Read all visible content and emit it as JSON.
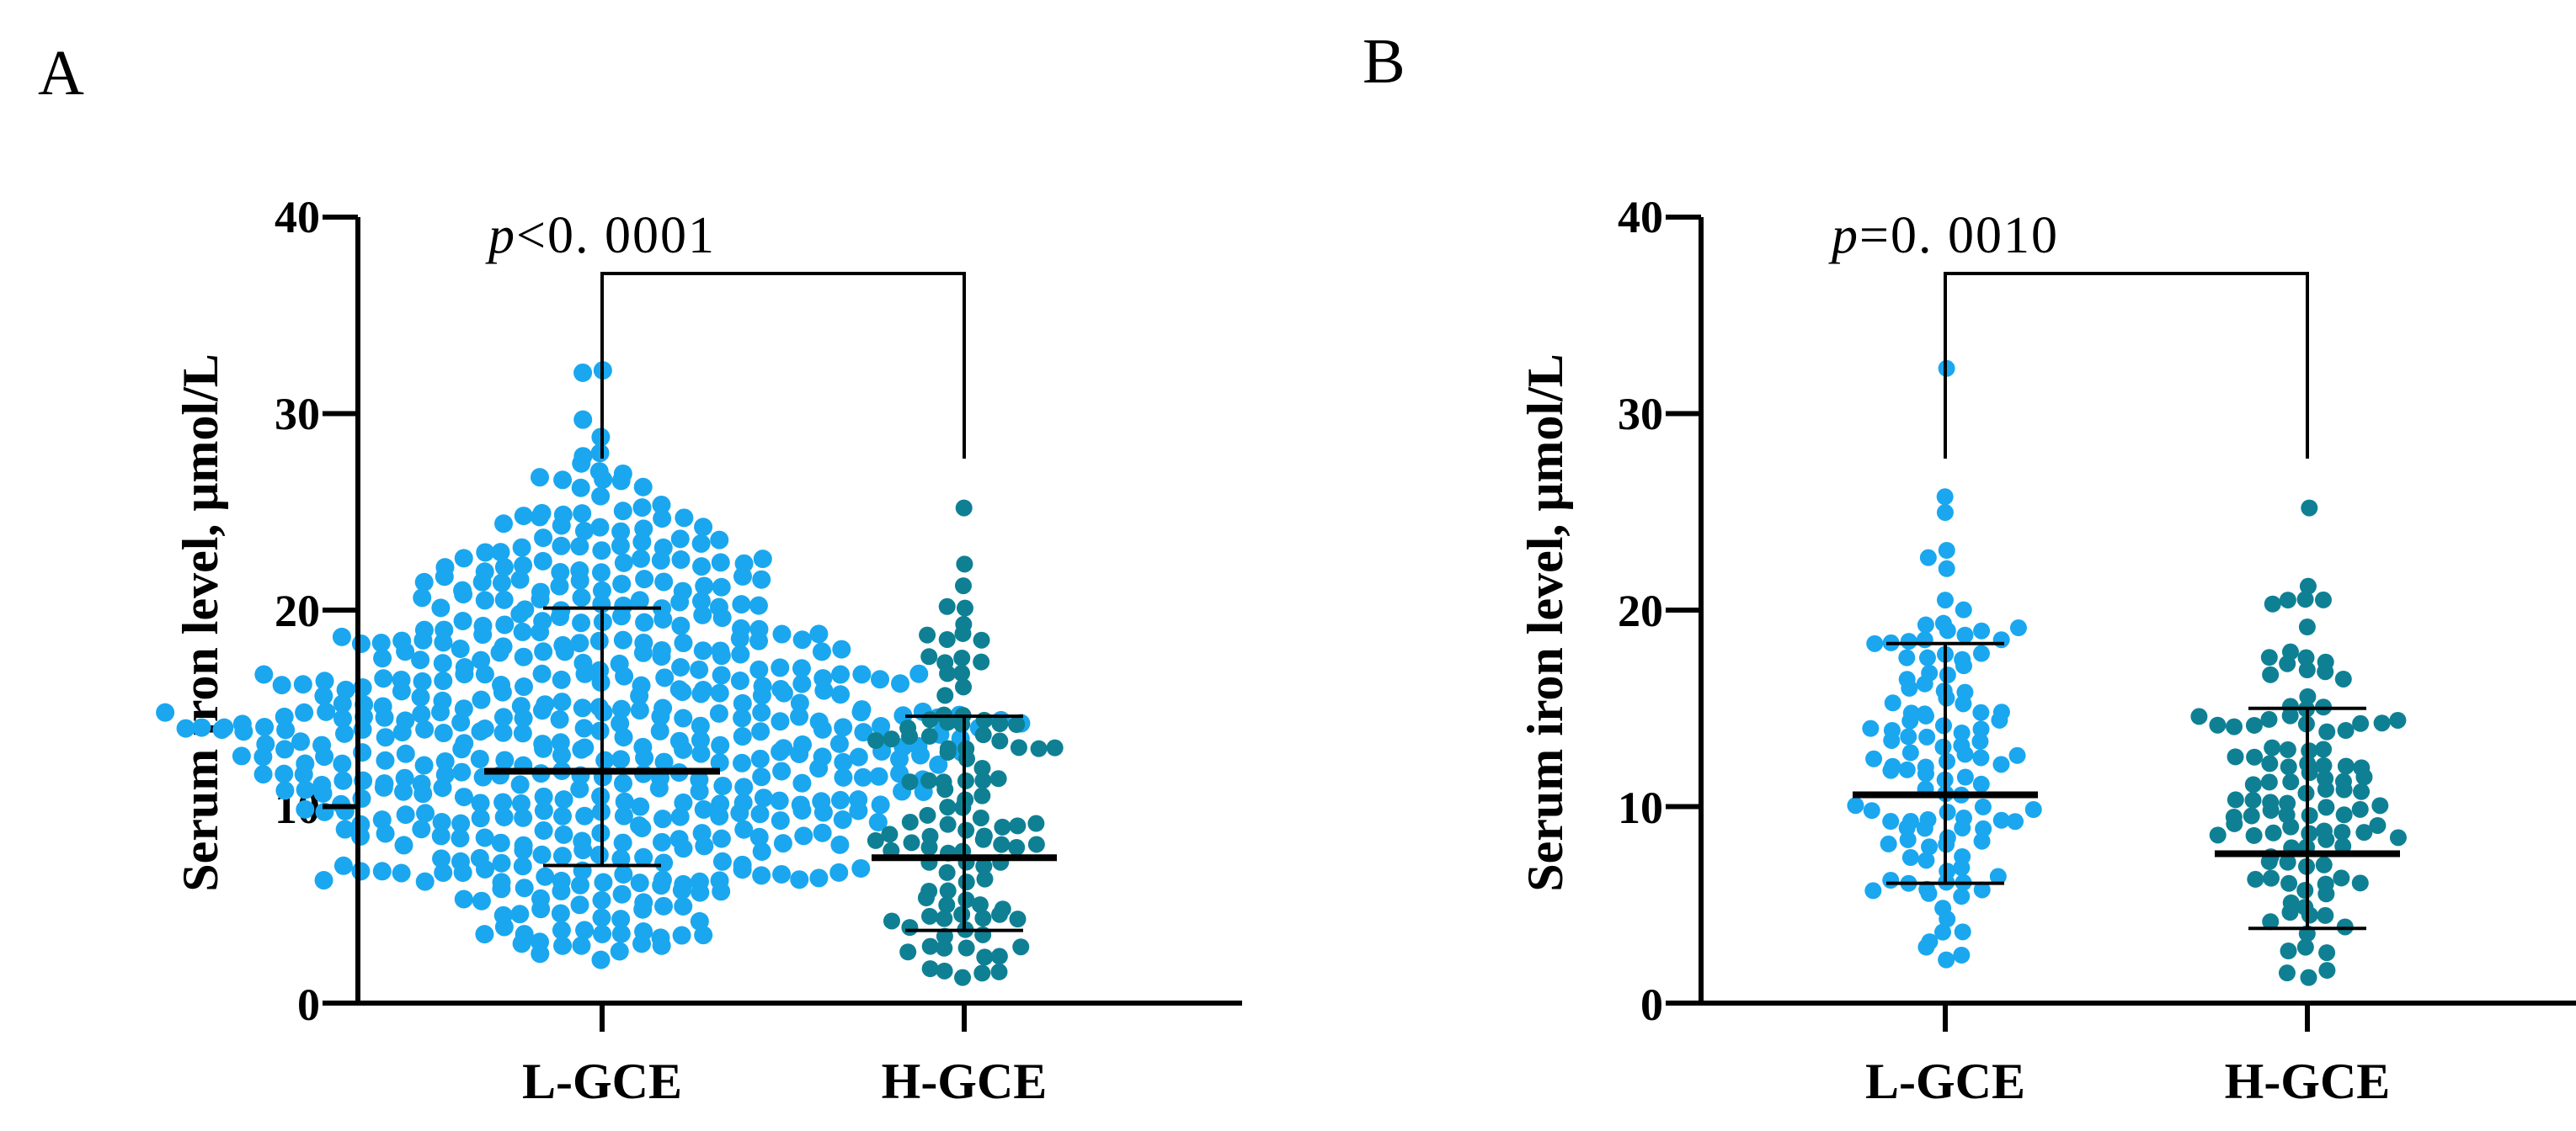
{
  "colors": {
    "l_gce": "#1aa7ef",
    "h_gce": "#0f8094",
    "axis": "#000000"
  },
  "chart_data": [
    {
      "panel": "A",
      "type": "scatter",
      "ylabel": "Serum iron level, μmol/L",
      "ylim": [
        0,
        40
      ],
      "yticks": [
        "0",
        "10",
        "20",
        "30",
        "40"
      ],
      "categories": [
        "L-GCE",
        "H-GCE"
      ],
      "p_symbol": "p",
      "p_text": "<0. 0001",
      "series": [
        {
          "name": "L-GCE",
          "n": 560,
          "mean": 11.8,
          "sd_low": 7.0,
          "sd_high": 20.1,
          "min": 2.2,
          "max": 32.2
        },
        {
          "name": "H-GCE",
          "n": 110,
          "mean": 7.4,
          "sd_low": 3.7,
          "sd_high": 14.6,
          "min": 1.3,
          "max": 25.2
        }
      ]
    },
    {
      "panel": "B",
      "type": "scatter",
      "ylabel": "Serum iron level, μmol/L",
      "ylim": [
        0,
        40
      ],
      "yticks": [
        "0",
        "10",
        "20",
        "30",
        "40"
      ],
      "categories": [
        "L-GCE",
        "H-GCE"
      ],
      "p_symbol": "p",
      "p_text": "=0. 0010",
      "series": [
        {
          "name": "L-GCE",
          "n": 115,
          "mean": 10.6,
          "sd_low": 6.1,
          "sd_high": 18.3,
          "min": 2.2,
          "max": 32.3
        },
        {
          "name": "H-GCE",
          "n": 110,
          "mean": 7.6,
          "sd_low": 3.8,
          "sd_high": 15.0,
          "min": 1.3,
          "max": 25.2
        }
      ]
    }
  ]
}
